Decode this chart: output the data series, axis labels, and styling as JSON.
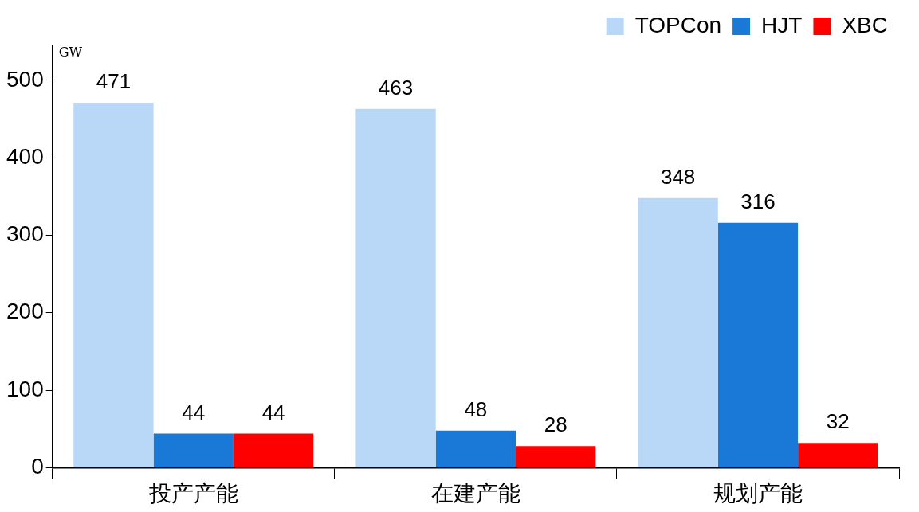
{
  "chart_data": {
    "type": "bar",
    "ylabel": "GW",
    "categories": [
      "投产产能",
      "在建产能",
      "规划产能"
    ],
    "series": [
      {
        "name": "TOPCon",
        "color": "#b9d8f7",
        "values": [
          471,
          463,
          348
        ]
      },
      {
        "name": "HJT",
        "color": "#1a78d6",
        "values": [
          44,
          48,
          316
        ]
      },
      {
        "name": "XBC",
        "color": "#ff0000",
        "values": [
          44,
          28,
          32
        ]
      }
    ],
    "ylim": [
      0,
      545
    ],
    "yticks": [
      0,
      100,
      200,
      300,
      400,
      500
    ],
    "grid": false,
    "legend": "top right",
    "data_labels": true
  }
}
